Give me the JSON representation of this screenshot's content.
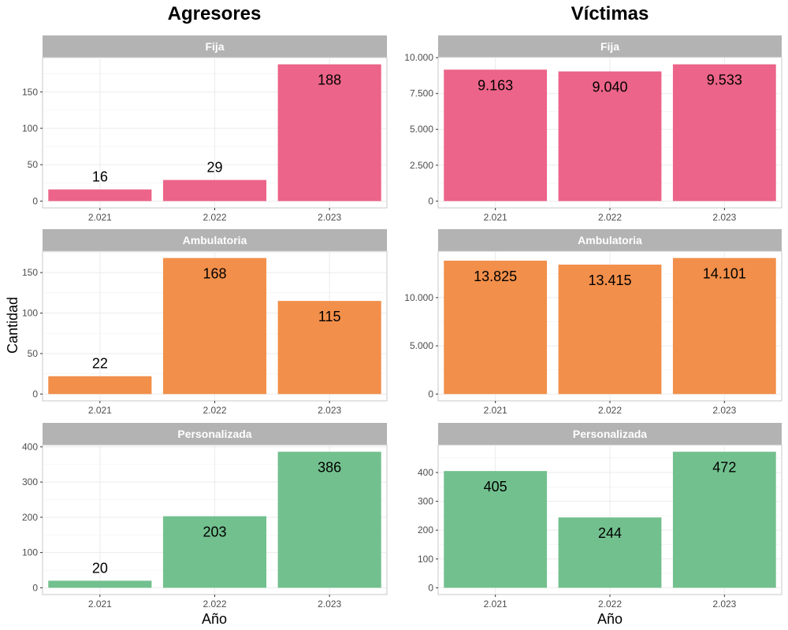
{
  "chart_data": {
    "type": "bar",
    "column_titles": [
      "Agresores",
      "Víctimas"
    ],
    "row_labels": [
      "Fija",
      "Ambulatoria",
      "Personalizada"
    ],
    "categories": [
      "2.021",
      "2.022",
      "2.023"
    ],
    "xlabel": "Año",
    "ylabel": "Cantidad",
    "grid": true,
    "panels": [
      {
        "column": "Agresores",
        "row": "Fija",
        "values": [
          16,
          29,
          188
        ],
        "value_labels": [
          "16",
          "29",
          "188"
        ],
        "ylim": [
          -9.4,
          197.4
        ],
        "yticks": [
          0,
          50,
          100,
          150
        ],
        "ytick_labels": [
          "0",
          "50",
          "100",
          "150"
        ],
        "color": "#EC6489"
      },
      {
        "column": "Víctimas",
        "row": "Fija",
        "values": [
          9163,
          9040,
          9533
        ],
        "value_labels": [
          "9.163",
          "9.040",
          "9.533"
        ],
        "ylim": [
          -476.65,
          10009.65
        ],
        "yticks": [
          0,
          2500,
          5000,
          7500,
          10000
        ],
        "ytick_labels": [
          "0",
          "2.500",
          "5.000",
          "7.500",
          "10.000"
        ],
        "color": "#EC6489"
      },
      {
        "column": "Agresores",
        "row": "Ambulatoria",
        "values": [
          22,
          168,
          115
        ],
        "value_labels": [
          "22",
          "168",
          "115"
        ],
        "ylim": [
          -8.4,
          176.4
        ],
        "yticks": [
          0,
          50,
          100,
          150
        ],
        "ytick_labels": [
          "0",
          "50",
          "100",
          "150"
        ],
        "color": "#F28F4A"
      },
      {
        "column": "Víctimas",
        "row": "Ambulatoria",
        "values": [
          13825,
          13415,
          14101
        ],
        "value_labels": [
          "13.825",
          "13.415",
          "14.101"
        ],
        "ylim": [
          -705.05,
          14806.05
        ],
        "yticks": [
          0,
          5000,
          10000
        ],
        "ytick_labels": [
          "0",
          "5.000",
          "10.000"
        ],
        "color": "#F28F4A"
      },
      {
        "column": "Agresores",
        "row": "Personalizada",
        "values": [
          20,
          203,
          386
        ],
        "value_labels": [
          "20",
          "203",
          "386"
        ],
        "ylim": [
          -19.3,
          405.3
        ],
        "yticks": [
          0,
          100,
          200,
          300,
          400
        ],
        "ytick_labels": [
          "0",
          "100",
          "200",
          "300",
          "400"
        ],
        "color": "#72C08E"
      },
      {
        "column": "Víctimas",
        "row": "Personalizada",
        "values": [
          405,
          244,
          472
        ],
        "value_labels": [
          "405",
          "244",
          "472"
        ],
        "ylim": [
          -23.6,
          495.6
        ],
        "yticks": [
          0,
          100,
          200,
          300,
          400
        ],
        "ytick_labels": [
          "0",
          "100",
          "200",
          "300",
          "400"
        ],
        "color": "#72C08E"
      }
    ]
  }
}
